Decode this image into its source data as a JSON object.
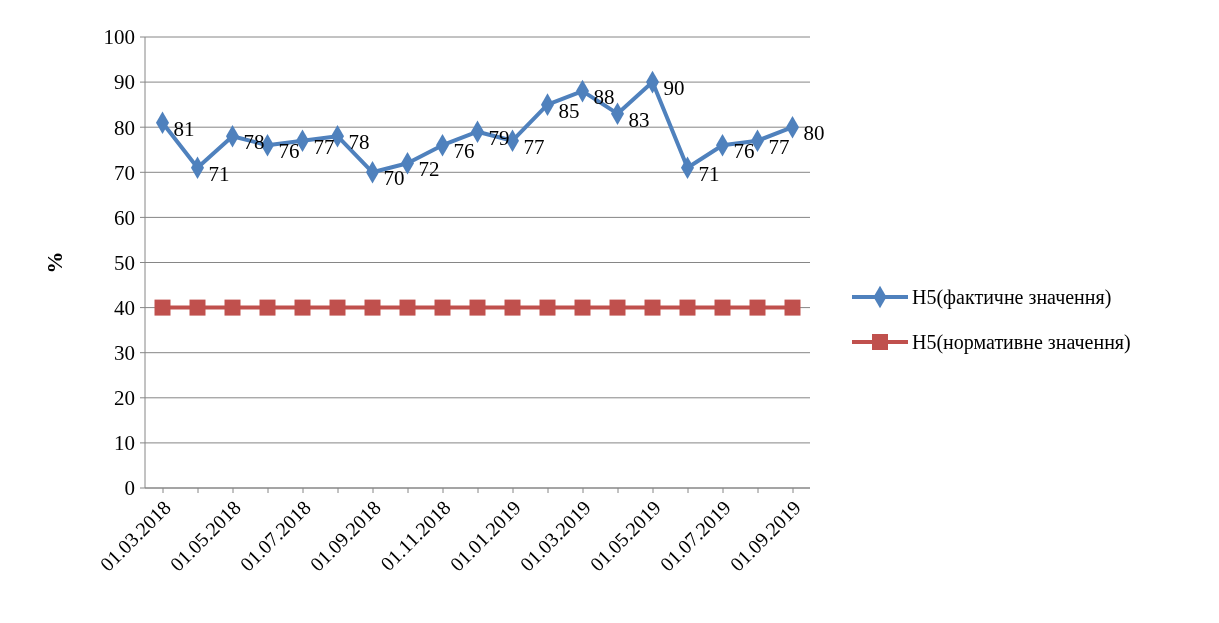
{
  "chart_data": {
    "type": "line",
    "ylabel": "%",
    "categories": [
      "01.03.2018",
      null,
      "01.05.2018",
      null,
      "01.07.2018",
      null,
      "01.09.2018",
      null,
      "01.11.2018",
      null,
      "01.01.2019",
      null,
      "01.03.2019",
      null,
      "01.05.2019",
      null,
      "01.07.2019",
      null,
      "01.09.2019"
    ],
    "series": [
      {
        "name": "H5(фактичне значення)",
        "color": "#4f81bd",
        "marker": "diamond",
        "values": [
          81,
          71,
          78,
          76,
          77,
          78,
          70,
          72,
          76,
          79,
          77,
          85,
          88,
          83,
          90,
          71,
          76,
          77,
          80
        ],
        "value_labels": [
          "81",
          "71",
          "78",
          "76",
          "77",
          "78",
          "70",
          "72",
          "76",
          "79",
          "77",
          "85",
          "88",
          "83",
          "90",
          "71",
          "76",
          "77",
          "80"
        ]
      },
      {
        "name": "H5(нормативне значення)",
        "color": "#c0504d",
        "marker": "square",
        "values": [
          40,
          40,
          40,
          40,
          40,
          40,
          40,
          40,
          40,
          40,
          40,
          40,
          40,
          40,
          40,
          40,
          40,
          40,
          40
        ]
      }
    ],
    "ylim": [
      0,
      100
    ],
    "yticks": [
      0,
      10,
      20,
      30,
      40,
      50,
      60,
      70,
      80,
      90,
      100
    ],
    "grid": "y",
    "legend": "right"
  }
}
